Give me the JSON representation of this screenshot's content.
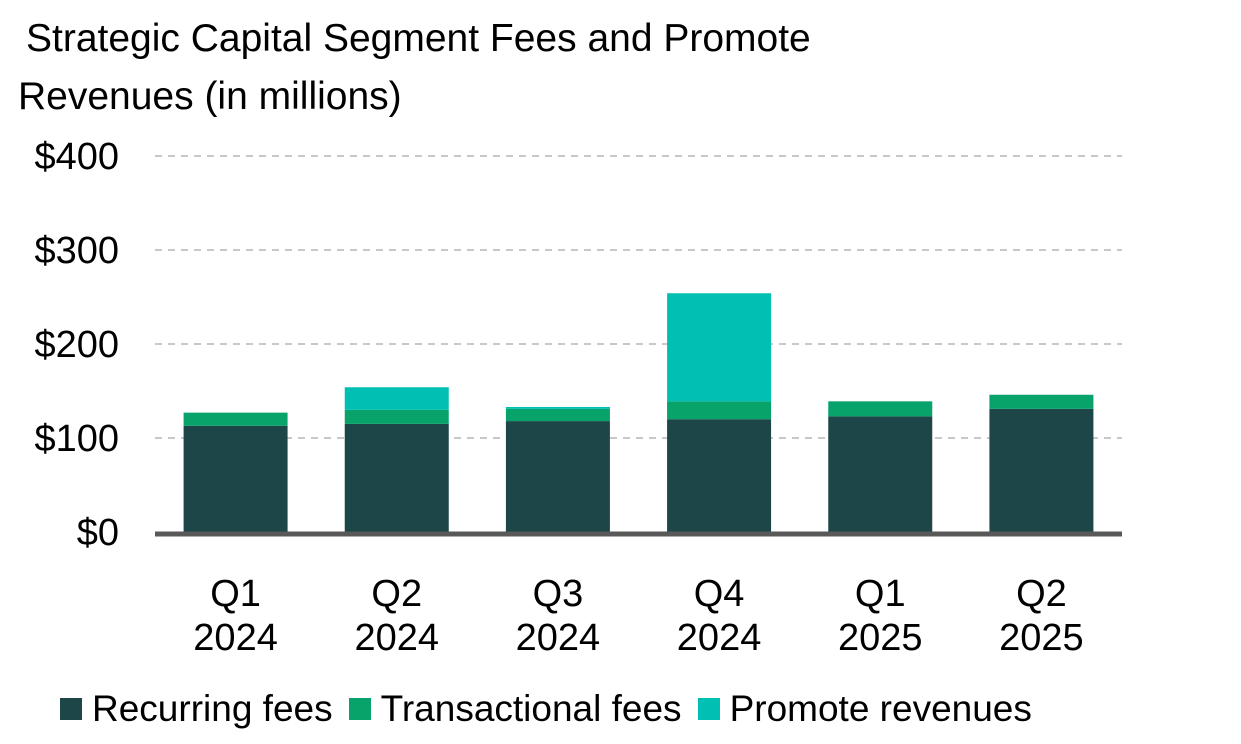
{
  "chart_data": {
    "type": "bar",
    "stacked": true,
    "title_line1": "Strategic Capital Segment Fees and Promote",
    "title_line2": "Revenues (in millions)",
    "categories": [
      [
        "Q1",
        "2024"
      ],
      [
        "Q2",
        "2024"
      ],
      [
        "Q3",
        "2024"
      ],
      [
        "Q4",
        "2024"
      ],
      [
        "Q1",
        "2025"
      ],
      [
        "Q2",
        "2025"
      ]
    ],
    "series": [
      {
        "name": "Recurring fees",
        "color": "#1c4647",
        "values": [
          113,
          115,
          118,
          120,
          123,
          131
        ]
      },
      {
        "name": "Transactional fees",
        "color": "#07a36b",
        "values": [
          14,
          15,
          13,
          19,
          16,
          15
        ]
      },
      {
        "name": "Promote revenues",
        "color": "#00c0b3",
        "values": [
          0,
          24,
          2,
          115,
          0,
          0
        ]
      }
    ],
    "ylim": [
      0,
      400
    ],
    "yticks": [
      0,
      100,
      200,
      300,
      400
    ],
    "ytick_labels": [
      "$0",
      "$100",
      "$200",
      "$300",
      "$400"
    ],
    "grid": "dashed horizontal",
    "legend_position": "bottom"
  }
}
